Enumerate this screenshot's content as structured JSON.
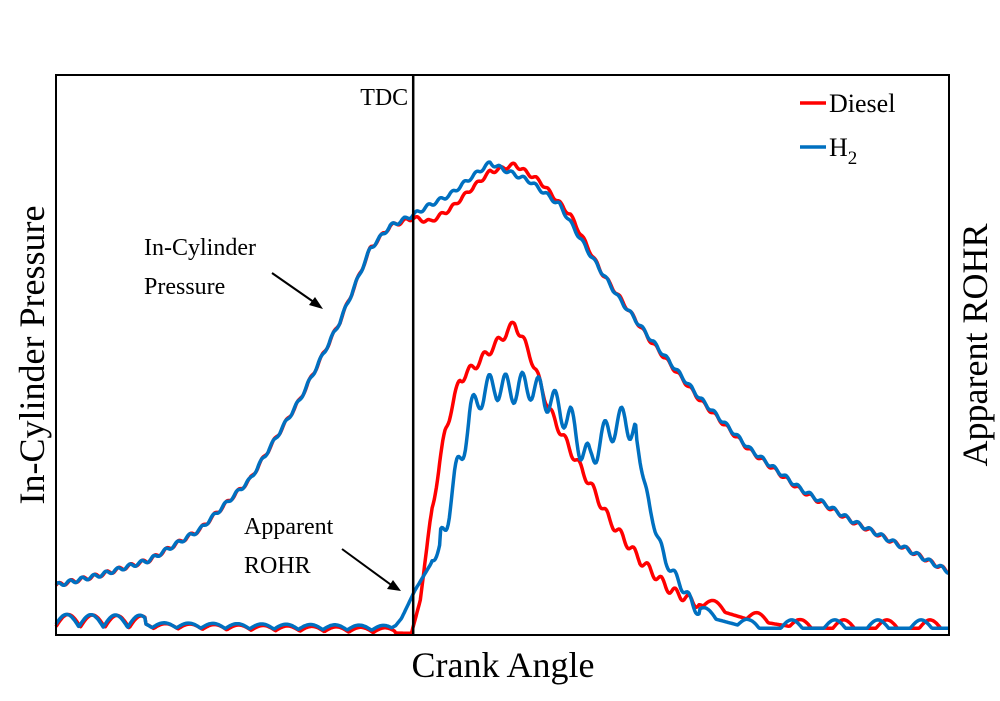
{
  "chart_data": {
    "type": "line",
    "title": "",
    "xlabel": "Crank Angle",
    "ylabel_left": "In-Cylinder Pressure",
    "ylabel_right": "Apparent ROHR",
    "xlim": [
      0,
      100
    ],
    "ylim": [
      0,
      100
    ],
    "grid": false,
    "ticks_shown": false,
    "legend_position": "top-right",
    "colors": {
      "diesel": "#ff0000",
      "h2": "#0070c0",
      "axis": "#000000"
    },
    "annotations": {
      "tdc_label": "TDC",
      "tdc_x": 40,
      "pressure_label_line1": "In-Cylinder",
      "pressure_label_line2": "Pressure",
      "rohr_label_line1": "Apparent",
      "rohr_label_line2": "ROHR"
    },
    "legend": {
      "diesel": "Diesel",
      "h2_base": "H",
      "h2_sub": "2"
    },
    "series": [
      {
        "name": "Diesel pressure",
        "key": "diesel",
        "x": [
          0,
          4.9,
          10.5,
          16.1,
          21.7,
          27.3,
          31.8,
          35.2,
          37.4,
          40,
          41.9,
          44.1,
          46.4,
          48.6,
          51.4,
          54.2,
          57.6,
          61,
          66.5,
          72.1,
          77.7,
          83.3,
          88.9,
          94.5,
          100
        ],
        "y": [
          8.9,
          10.7,
          13.4,
          18.8,
          27.7,
          42,
          56,
          69,
          73,
          74.5,
          73.8,
          76,
          79.5,
          82.7,
          84,
          81,
          75,
          65,
          52.7,
          42,
          33,
          26,
          20.5,
          16,
          11.3
        ]
      },
      {
        "name": "H2 pressure",
        "key": "h2",
        "x": [
          0,
          4.9,
          10.5,
          16.1,
          21.7,
          27.3,
          31.8,
          35.2,
          37.4,
          40,
          41.9,
          44.1,
          46.4,
          48.6,
          50.3,
          53.1,
          56.4,
          59.8,
          63.1,
          66.5,
          72.1,
          77.7,
          83.3,
          88.9,
          94.5,
          100
        ],
        "y": [
          8.9,
          10.7,
          13.4,
          18.8,
          27.7,
          42,
          56,
          69,
          73,
          75,
          76.8,
          78.6,
          81.6,
          84.3,
          83,
          81,
          76.8,
          68,
          60,
          53,
          42.3,
          33.2,
          26.2,
          20.6,
          16,
          11.3
        ]
      },
      {
        "name": "Diesel ROHR",
        "key": "diesel",
        "x": [
          0,
          39.8,
          40.8,
          41.9,
          43.6,
          45.2,
          47.5,
          49.7,
          51.4,
          53.1,
          55.3,
          57.6,
          59.8,
          62.0,
          65.4,
          68.8,
          72.1,
          77.7,
          83.3,
          88.9,
          94.5,
          100
        ],
        "y": [
          1.5,
          0.3,
          6.25,
          20.5,
          36.6,
          45.5,
          49,
          52.7,
          55.7,
          50,
          40,
          33,
          27,
          20.5,
          13.4,
          8,
          5.4,
          2.7,
          1.25,
          1.2,
          1.2,
          1.2
        ]
      },
      {
        "name": "H2 ROHR",
        "key": "h2",
        "x": [
          0,
          37.6,
          38.7,
          40.2,
          41.9,
          43.0,
          44.7,
          46.4,
          47.5,
          49.2,
          50.8,
          53.1,
          55.3,
          57.6,
          58.7,
          59.8,
          60.9,
          62.6,
          63.7,
          64.8,
          66.5,
          68.2,
          72.1,
          77.7,
          83.3,
          88.9,
          94.5,
          100
        ],
        "y": [
          1.5,
          0.8,
          3,
          8,
          12.5,
          16,
          27.7,
          39.3,
          42.9,
          44.6,
          43.8,
          44.6,
          42,
          38.4,
          33.9,
          31,
          34.8,
          37.5,
          38.4,
          36.6,
          22.3,
          13.4,
          3.6,
          1.2,
          1.2,
          1.2,
          1.2,
          1.2
        ]
      }
    ]
  }
}
